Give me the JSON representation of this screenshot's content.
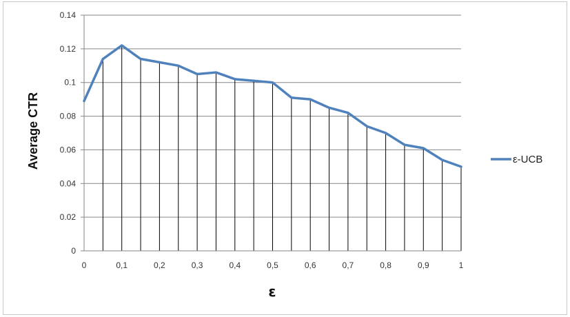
{
  "chart_data": {
    "type": "line",
    "xlabel": "ε",
    "ylabel": "Average CTR",
    "ylim": [
      0,
      0.14
    ],
    "y_ticks": [
      "0",
      "0.02",
      "0.04",
      "0.06",
      "0.08",
      "0.1",
      "0.12",
      "0.14"
    ],
    "y_tick_values": [
      0,
      0.02,
      0.04,
      0.06,
      0.08,
      0.1,
      0.12,
      0.14
    ],
    "x_ticks": [
      "0",
      "0,1",
      "0,2",
      "0,3",
      "0,4",
      "0,5",
      "0,6",
      "0,7",
      "0,8",
      "0,9",
      "1"
    ],
    "x_tick_values": [
      0,
      0.1,
      0.2,
      0.3,
      0.4,
      0.5,
      0.6,
      0.7,
      0.8,
      0.9,
      1.0
    ],
    "xlim": [
      0,
      1
    ],
    "grid": "horizontal major gridlines plus vertical drop lines at each data point",
    "legend_position": "right",
    "series": [
      {
        "name": "ε-UCB",
        "color": "#4f81bd",
        "x": [
          0,
          0.05,
          0.1,
          0.15,
          0.2,
          0.25,
          0.3,
          0.35,
          0.4,
          0.45,
          0.5,
          0.55,
          0.6,
          0.65,
          0.7,
          0.75,
          0.8,
          0.85,
          0.9,
          0.95,
          1.0
        ],
        "y": [
          0.089,
          0.114,
          0.122,
          0.114,
          0.112,
          0.11,
          0.105,
          0.106,
          0.102,
          0.101,
          0.1,
          0.091,
          0.09,
          0.085,
          0.082,
          0.074,
          0.07,
          0.063,
          0.061,
          0.054,
          0.05
        ]
      }
    ]
  }
}
